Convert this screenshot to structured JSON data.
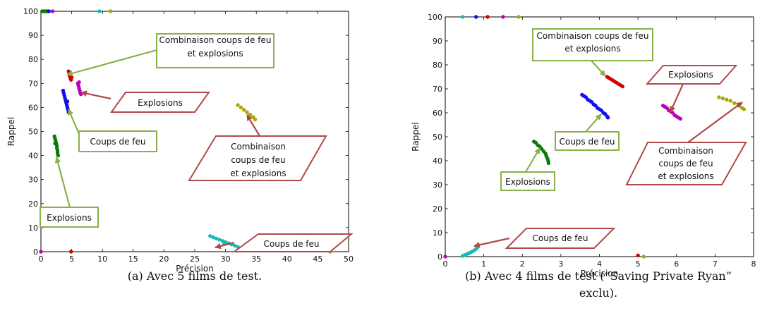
{
  "chart_data": [
    {
      "type": "scatter",
      "xlabel": "Précision",
      "ylabel": "Rappel",
      "xlim": [
        0,
        50
      ],
      "ylim": [
        0,
        100
      ],
      "xticks": [
        0,
        5,
        10,
        15,
        20,
        25,
        30,
        35,
        40,
        45,
        50
      ],
      "yticks": [
        0,
        10,
        20,
        30,
        40,
        50,
        60,
        70,
        80,
        90,
        100
      ],
      "caption": "(a) Avec 5 films de test.",
      "series": [
        {
          "color": "#d40000",
          "points": [
            [
              4.5,
              75
            ],
            [
              4.6,
              74
            ],
            [
              4.7,
              73
            ],
            [
              4.8,
              72
            ],
            [
              4.9,
              71.5
            ],
            [
              5.0,
              72.5
            ],
            [
              4.7,
              74.5
            ]
          ]
        },
        {
          "color": "#1010ee",
          "points": [
            [
              3.6,
              67
            ],
            [
              3.7,
              66
            ],
            [
              3.8,
              65
            ],
            [
              3.9,
              64
            ],
            [
              4.0,
              63
            ],
            [
              4.1,
              62
            ],
            [
              4.2,
              61
            ],
            [
              4.3,
              60
            ],
            [
              4.4,
              59
            ],
            [
              4.5,
              58
            ],
            [
              4.3,
              62.5
            ]
          ]
        },
        {
          "color": "#bb00bb",
          "points": [
            [
              6.0,
              70
            ],
            [
              6.1,
              69
            ],
            [
              6.2,
              68
            ],
            [
              6.3,
              67
            ],
            [
              6.4,
              66
            ],
            [
              6.5,
              65.5
            ],
            [
              6.2,
              70.5
            ]
          ]
        },
        {
          "color": "#0a7a0a",
          "points": [
            [
              2.2,
              48
            ],
            [
              2.3,
              47
            ],
            [
              2.4,
              46
            ],
            [
              2.5,
              45
            ],
            [
              2.6,
              44
            ],
            [
              2.6,
              43
            ],
            [
              2.7,
              42
            ],
            [
              2.7,
              41
            ],
            [
              2.8,
              40
            ],
            [
              2.3,
              45
            ]
          ]
        },
        {
          "color": "#a8a800",
          "points": [
            [
              32.0,
              61
            ],
            [
              32.5,
              60
            ],
            [
              33.0,
              59
            ],
            [
              33.5,
              58
            ],
            [
              34.0,
              57
            ],
            [
              34.5,
              56
            ],
            [
              34.8,
              55
            ]
          ]
        },
        {
          "color": "#1ab8b8",
          "points": [
            [
              27.5,
              6.5
            ],
            [
              28,
              6
            ],
            [
              28.5,
              5.5
            ],
            [
              29,
              5
            ],
            [
              29.5,
              4.5
            ],
            [
              30,
              4
            ],
            [
              30.5,
              3.5
            ],
            [
              31,
              3
            ],
            [
              31.5,
              2.5
            ],
            [
              32,
              2
            ],
            [
              29.8,
              3.2
            ]
          ]
        },
        {
          "color": "#1ab8b8",
          "points": [
            [
              9.5,
              100
            ]
          ]
        },
        {
          "color": "#a8a800",
          "points": [
            [
              11.3,
              100
            ]
          ]
        },
        {
          "color": "#0a7a0a",
          "points": [
            [
              0.2,
              100
            ],
            [
              0.5,
              100
            ],
            [
              0.8,
              100
            ],
            [
              1.1,
              100
            ]
          ]
        },
        {
          "color": "#1010ee",
          "points": [
            [
              1.3,
              100
            ]
          ]
        },
        {
          "color": "#bb00bb",
          "points": [
            [
              1.9,
              100
            ],
            [
              0,
              0
            ]
          ]
        },
        {
          "color": "#d40000",
          "points": [
            [
              4.9,
              0
            ]
          ]
        },
        {
          "color": "#a8a800",
          "points": [
            [
              47,
              0
            ]
          ]
        }
      ],
      "annotations": [
        {
          "lines": [
            "Combinaison coups de feu",
            "et explosions"
          ],
          "shape": "rect",
          "border": "#8ab14a"
        },
        {
          "lines": [
            "Explosions"
          ],
          "shape": "para",
          "border": "#b04a48"
        },
        {
          "lines": [
            "Coups de feu"
          ],
          "shape": "rect",
          "border": "#8ab14a"
        },
        {
          "lines": [
            "Combinaison",
            "coups de feu",
            "et explosions"
          ],
          "shape": "para",
          "border": "#b04a48"
        },
        {
          "lines": [
            "Explosions"
          ],
          "shape": "rect",
          "border": "#8ab14a"
        },
        {
          "lines": [
            "Coups de feu"
          ],
          "shape": "para",
          "border": "#b04a48"
        }
      ]
    },
    {
      "type": "scatter",
      "xlabel": "Précision",
      "ylabel": "Rappel",
      "xlim": [
        0,
        8
      ],
      "ylim": [
        0,
        100
      ],
      "xticks": [
        0,
        1,
        2,
        3,
        4,
        5,
        6,
        7,
        8
      ],
      "yticks": [
        0,
        10,
        20,
        30,
        40,
        50,
        60,
        70,
        80,
        90,
        100
      ],
      "caption_lines": [
        "(b) Avec 4 films de test (“Saving Private Ryan”",
        "exclu)."
      ],
      "series": [
        {
          "color": "#d40000",
          "points": [
            [
              4.2,
              75
            ],
            [
              4.25,
              74.5
            ],
            [
              4.3,
              74
            ],
            [
              4.35,
              73.5
            ],
            [
              4.4,
              73
            ],
            [
              4.45,
              72.5
            ],
            [
              4.5,
              72
            ],
            [
              4.55,
              71.5
            ],
            [
              4.6,
              71
            ]
          ]
        },
        {
          "color": "#1010ee",
          "points": [
            [
              3.55,
              67.5
            ],
            [
              3.6,
              67
            ],
            [
              3.65,
              66.5
            ],
            [
              3.7,
              65.5
            ],
            [
              3.75,
              65
            ],
            [
              3.8,
              64.5
            ],
            [
              3.85,
              63.5
            ],
            [
              3.9,
              63
            ],
            [
              3.95,
              62
            ],
            [
              4.0,
              61.5
            ],
            [
              4.05,
              61
            ],
            [
              4.1,
              60
            ],
            [
              4.15,
              59.5
            ],
            [
              4.2,
              58.5
            ],
            [
              4.22,
              58
            ]
          ]
        },
        {
          "color": "#bb00bb",
          "points": [
            [
              5.65,
              63
            ],
            [
              5.7,
              62.5
            ],
            [
              5.75,
              62
            ],
            [
              5.8,
              61
            ],
            [
              5.85,
              60.5
            ],
            [
              5.9,
              60
            ],
            [
              5.95,
              59
            ],
            [
              6.0,
              58.5
            ],
            [
              6.05,
              58
            ],
            [
              6.1,
              57.5
            ]
          ]
        },
        {
          "color": "#0a7a0a",
          "points": [
            [
              2.3,
              48
            ],
            [
              2.35,
              47.5
            ],
            [
              2.4,
              46.5
            ],
            [
              2.45,
              46
            ],
            [
              2.5,
              45
            ],
            [
              2.55,
              44
            ],
            [
              2.6,
              43
            ],
            [
              2.62,
              42
            ],
            [
              2.65,
              41
            ],
            [
              2.67,
              40
            ],
            [
              2.68,
              39
            ]
          ]
        },
        {
          "color": "#a8a800",
          "points": [
            [
              7.1,
              66.5
            ],
            [
              7.2,
              66
            ],
            [
              7.3,
              65.5
            ],
            [
              7.4,
              65
            ],
            [
              7.5,
              64
            ],
            [
              7.6,
              63
            ],
            [
              7.7,
              62
            ],
            [
              7.75,
              61.5
            ]
          ]
        },
        {
          "color": "#1ab8b8",
          "points": [
            [
              0.45,
              0.3
            ],
            [
              0.5,
              0.6
            ],
            [
              0.55,
              1
            ],
            [
              0.6,
              1.3
            ],
            [
              0.65,
              1.7
            ],
            [
              0.7,
              2.1
            ],
            [
              0.75,
              2.6
            ],
            [
              0.8,
              3.2
            ],
            [
              0.83,
              3.8
            ],
            [
              0.85,
              4.3
            ]
          ]
        },
        {
          "color": "#1ab8b8",
          "points": [
            [
              0.45,
              100
            ]
          ]
        },
        {
          "color": "#1010ee",
          "points": [
            [
              0.8,
              100
            ]
          ]
        },
        {
          "color": "#d40000",
          "points": [
            [
              1.1,
              100
            ],
            [
              5.0,
              0.5
            ]
          ]
        },
        {
          "color": "#bb00bb",
          "points": [
            [
              1.5,
              100
            ],
            [
              0,
              0
            ]
          ]
        },
        {
          "color": "#a8a800",
          "points": [
            [
              1.9,
              100
            ],
            [
              5.15,
              0
            ]
          ]
        }
      ],
      "annotations": [
        {
          "lines": [
            "Combinaison coups de feu",
            "et explosions"
          ],
          "shape": "rect",
          "border": "#8ab14a"
        },
        {
          "lines": [
            "Explosions"
          ],
          "shape": "para",
          "border": "#b04a48"
        },
        {
          "lines": [
            "Coups de feu"
          ],
          "shape": "rect",
          "border": "#8ab14a"
        },
        {
          "lines": [
            "Explosions"
          ],
          "shape": "rect",
          "border": "#8ab14a"
        },
        {
          "lines": [
            "Combinaison",
            "coups de feu",
            "et explosions"
          ],
          "shape": "para",
          "border": "#b04a48"
        },
        {
          "lines": [
            "Coups de feu"
          ],
          "shape": "para",
          "border": "#b04a48"
        }
      ]
    }
  ]
}
